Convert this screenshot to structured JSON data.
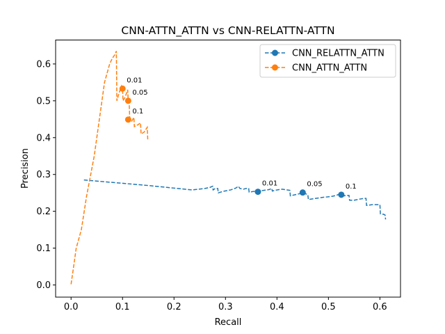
{
  "chart_data": {
    "type": "line",
    "title": "CNN-ATTN_ATTN vs CNN-RELATTN-ATTN",
    "xlabel": "Recall",
    "ylabel": "Precision",
    "xlim": [
      -0.03,
      0.64
    ],
    "ylim": [
      -0.033,
      0.665
    ],
    "xticks": [
      0.0,
      0.1,
      0.2,
      0.3,
      0.4,
      0.5,
      0.6
    ],
    "xtick_labels": [
      "0.0",
      "0.1",
      "0.2",
      "0.3",
      "0.4",
      "0.5",
      "0.6"
    ],
    "yticks": [
      0.0,
      0.1,
      0.2,
      0.3,
      0.4,
      0.5,
      0.6
    ],
    "ytick_labels": [
      "0.0",
      "0.1",
      "0.2",
      "0.3",
      "0.4",
      "0.5",
      "0.6"
    ],
    "grid": false,
    "legend_position": "top-right",
    "series": [
      {
        "name": "CNN_RELATTN_ATTN",
        "color": "#1f77b4",
        "line_style": "dashed",
        "points": [
          [
            0.025,
            0.285
          ],
          [
            0.05,
            0.282
          ],
          [
            0.1,
            0.276
          ],
          [
            0.15,
            0.27
          ],
          [
            0.2,
            0.263
          ],
          [
            0.235,
            0.258
          ],
          [
            0.26,
            0.262
          ],
          [
            0.27,
            0.265
          ],
          [
            0.275,
            0.268
          ],
          [
            0.276,
            0.258
          ],
          [
            0.28,
            0.262
          ],
          [
            0.285,
            0.262
          ],
          [
            0.286,
            0.25
          ],
          [
            0.295,
            0.254
          ],
          [
            0.31,
            0.258
          ],
          [
            0.32,
            0.263
          ],
          [
            0.325,
            0.268
          ],
          [
            0.328,
            0.262
          ],
          [
            0.335,
            0.26
          ],
          [
            0.34,
            0.262
          ],
          [
            0.345,
            0.262
          ],
          [
            0.346,
            0.252
          ],
          [
            0.355,
            0.254
          ],
          [
            0.365,
            0.255
          ],
          [
            0.375,
            0.257
          ],
          [
            0.385,
            0.259
          ],
          [
            0.39,
            0.262
          ],
          [
            0.391,
            0.255
          ],
          [
            0.4,
            0.258
          ],
          [
            0.41,
            0.26
          ],
          [
            0.42,
            0.258
          ],
          [
            0.425,
            0.257
          ],
          [
            0.426,
            0.242
          ],
          [
            0.435,
            0.245
          ],
          [
            0.445,
            0.248
          ],
          [
            0.45,
            0.25
          ],
          [
            0.455,
            0.248
          ],
          [
            0.46,
            0.245
          ],
          [
            0.461,
            0.232
          ],
          [
            0.475,
            0.235
          ],
          [
            0.49,
            0.238
          ],
          [
            0.505,
            0.24
          ],
          [
            0.515,
            0.243
          ],
          [
            0.52,
            0.246
          ],
          [
            0.525,
            0.245
          ],
          [
            0.53,
            0.242
          ],
          [
            0.535,
            0.243
          ],
          [
            0.54,
            0.243
          ],
          [
            0.541,
            0.23
          ],
          [
            0.55,
            0.23
          ],
          [
            0.56,
            0.233
          ],
          [
            0.57,
            0.235
          ],
          [
            0.573,
            0.235
          ],
          [
            0.574,
            0.216
          ],
          [
            0.585,
            0.218
          ],
          [
            0.595,
            0.218
          ],
          [
            0.6,
            0.218
          ],
          [
            0.601,
            0.193
          ],
          [
            0.607,
            0.192
          ],
          [
            0.61,
            0.19
          ],
          [
            0.611,
            0.178
          ]
        ],
        "markers": [
          [
            0.363,
            0.253
          ],
          [
            0.45,
            0.251
          ],
          [
            0.525,
            0.245
          ]
        ]
      },
      {
        "name": "CNN_ATTN_ATTN",
        "color": "#ff7f0e",
        "line_style": "dashed",
        "points": [
          [
            0.0,
            0.002
          ],
          [
            0.005,
            0.05
          ],
          [
            0.01,
            0.1
          ],
          [
            0.02,
            0.15
          ],
          [
            0.03,
            0.24
          ],
          [
            0.045,
            0.35
          ],
          [
            0.055,
            0.45
          ],
          [
            0.065,
            0.55
          ],
          [
            0.075,
            0.6
          ],
          [
            0.08,
            0.615
          ],
          [
            0.085,
            0.625
          ],
          [
            0.088,
            0.635
          ],
          [
            0.089,
            0.5
          ],
          [
            0.093,
            0.52
          ],
          [
            0.098,
            0.54
          ],
          [
            0.1,
            0.532
          ],
          [
            0.101,
            0.5
          ],
          [
            0.105,
            0.51
          ],
          [
            0.11,
            0.53
          ],
          [
            0.111,
            0.5
          ],
          [
            0.113,
            0.492
          ],
          [
            0.114,
            0.45
          ],
          [
            0.118,
            0.445
          ],
          [
            0.122,
            0.455
          ],
          [
            0.123,
            0.43
          ],
          [
            0.13,
            0.435
          ],
          [
            0.135,
            0.44
          ],
          [
            0.136,
            0.41
          ],
          [
            0.142,
            0.415
          ],
          [
            0.148,
            0.428
          ],
          [
            0.149,
            0.395
          ]
        ],
        "markers": [
          [
            0.1,
            0.533
          ],
          [
            0.111,
            0.5
          ],
          [
            0.111,
            0.449
          ]
        ]
      }
    ],
    "annotations": [
      {
        "text": "0.01",
        "x": 0.363,
        "y": 0.253,
        "series": 0
      },
      {
        "text": "0.05",
        "x": 0.45,
        "y": 0.251,
        "series": 0
      },
      {
        "text": "0.1",
        "x": 0.525,
        "y": 0.245,
        "series": 0
      },
      {
        "text": "0.01",
        "x": 0.1,
        "y": 0.533,
        "series": 1
      },
      {
        "text": "0.05",
        "x": 0.111,
        "y": 0.5,
        "series": 1
      },
      {
        "text": "0.1",
        "x": 0.111,
        "y": 0.449,
        "series": 1
      }
    ]
  }
}
